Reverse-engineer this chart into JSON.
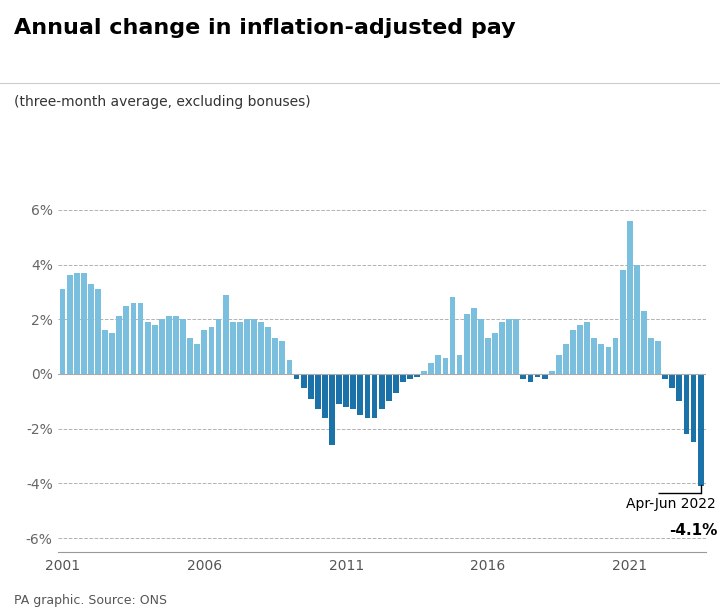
{
  "title": "Annual change in inflation-adjusted pay",
  "subtitle": "(three-month average, excluding bonuses)",
  "footer": "PA graphic. Source: ONS",
  "annotation_label": "Apr-Jun 2022",
  "annotation_value": "-4.1%",
  "bar_color_positive": "#7bbfde",
  "bar_color_negative": "#1a72a8",
  "background_color": "#ffffff",
  "ylim": [
    -6.5,
    6.5
  ],
  "yticks": [
    -6,
    -4,
    -2,
    0,
    2,
    4,
    6
  ],
  "values": [
    3.1,
    3.6,
    3.7,
    3.7,
    3.3,
    3.1,
    1.6,
    1.5,
    2.1,
    2.5,
    2.6,
    2.6,
    1.9,
    1.8,
    2.0,
    2.1,
    2.1,
    2.0,
    1.3,
    1.1,
    1.6,
    1.7,
    2.0,
    2.9,
    1.9,
    1.9,
    2.0,
    2.0,
    1.9,
    1.7,
    1.3,
    1.2,
    0.5,
    -0.2,
    -0.5,
    -0.9,
    -1.3,
    -1.6,
    -2.6,
    -1.1,
    -1.2,
    -1.3,
    -1.5,
    -1.6,
    -1.6,
    -1.3,
    -1.0,
    -0.7,
    -0.3,
    -0.2,
    -0.1,
    0.1,
    0.4,
    0.7,
    0.6,
    2.8,
    0.7,
    2.2,
    2.4,
    2.0,
    1.3,
    1.5,
    1.9,
    2.0,
    2.0,
    -0.2,
    -0.3,
    -0.1,
    -0.2,
    0.1,
    0.7,
    1.1,
    1.6,
    1.8,
    1.9,
    1.3,
    1.1,
    1.0,
    1.3,
    3.8,
    5.6,
    4.0,
    2.3,
    1.3,
    1.2,
    -0.2,
    -0.5,
    -1.0,
    -2.2,
    -2.5,
    -4.1
  ],
  "x_start_year": 2001.0,
  "x_step": 0.25,
  "xtick_years": [
    2001,
    2006,
    2011,
    2016,
    2021
  ]
}
